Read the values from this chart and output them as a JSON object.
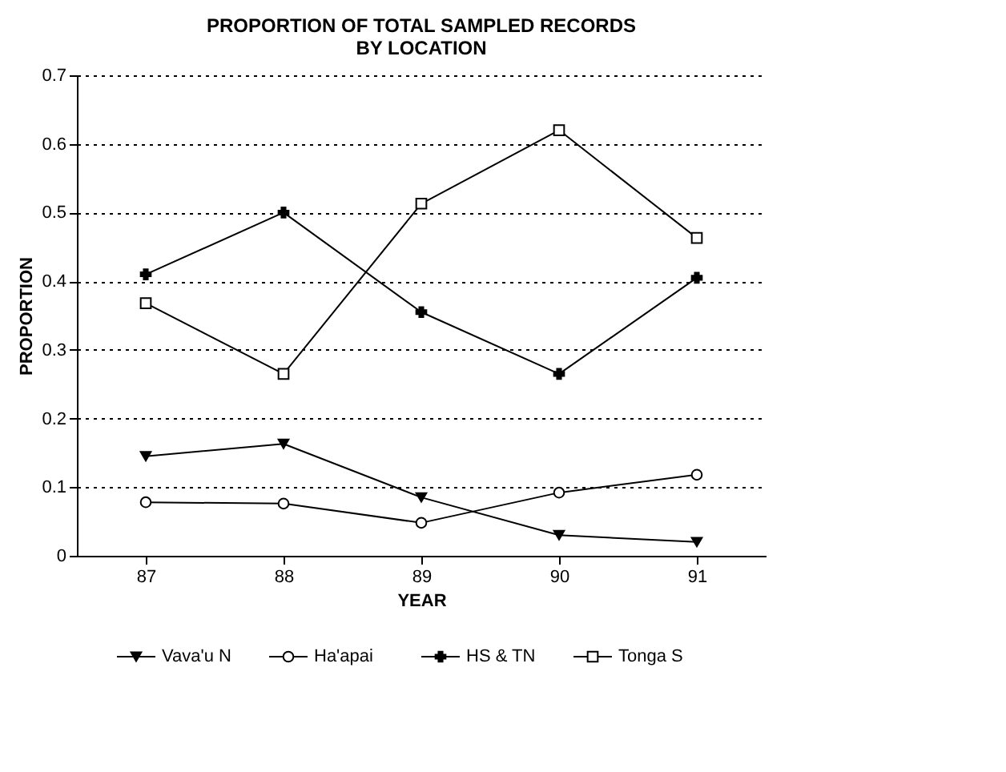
{
  "chart_data": {
    "type": "line",
    "title": [
      "PROPORTION OF TOTAL SAMPLED RECORDS",
      "BY LOCATION"
    ],
    "xlabel": "YEAR",
    "ylabel": "PROPORTION",
    "categories": [
      "87",
      "88",
      "89",
      "90",
      "91"
    ],
    "series": [
      {
        "name": "Vava'u N",
        "color": "#000000",
        "marker": "triangle",
        "values": [
          0.145,
          0.163,
          0.085,
          0.03,
          0.02
        ]
      },
      {
        "name": "Ha'apai",
        "color": "#000000",
        "marker": "circle",
        "values": [
          0.078,
          0.076,
          0.048,
          0.092,
          0.118
        ]
      },
      {
        "name": "HS & TN",
        "color": "#000000",
        "marker": "cross",
        "values": [
          0.41,
          0.5,
          0.355,
          0.265,
          0.405
        ]
      },
      {
        "name": "Tonga S",
        "color": "#000000",
        "marker": "square",
        "values": [
          0.368,
          0.265,
          0.513,
          0.62,
          0.463
        ]
      }
    ],
    "ylim": [
      0,
      0.7
    ],
    "yticks": [
      {
        "value": 0,
        "label": "0"
      },
      0.1,
      0.2,
      0.3,
      0.4,
      0.5,
      0.6,
      0.7
    ],
    "grid": "y",
    "legend": "bottom",
    "line_style": "solid"
  }
}
